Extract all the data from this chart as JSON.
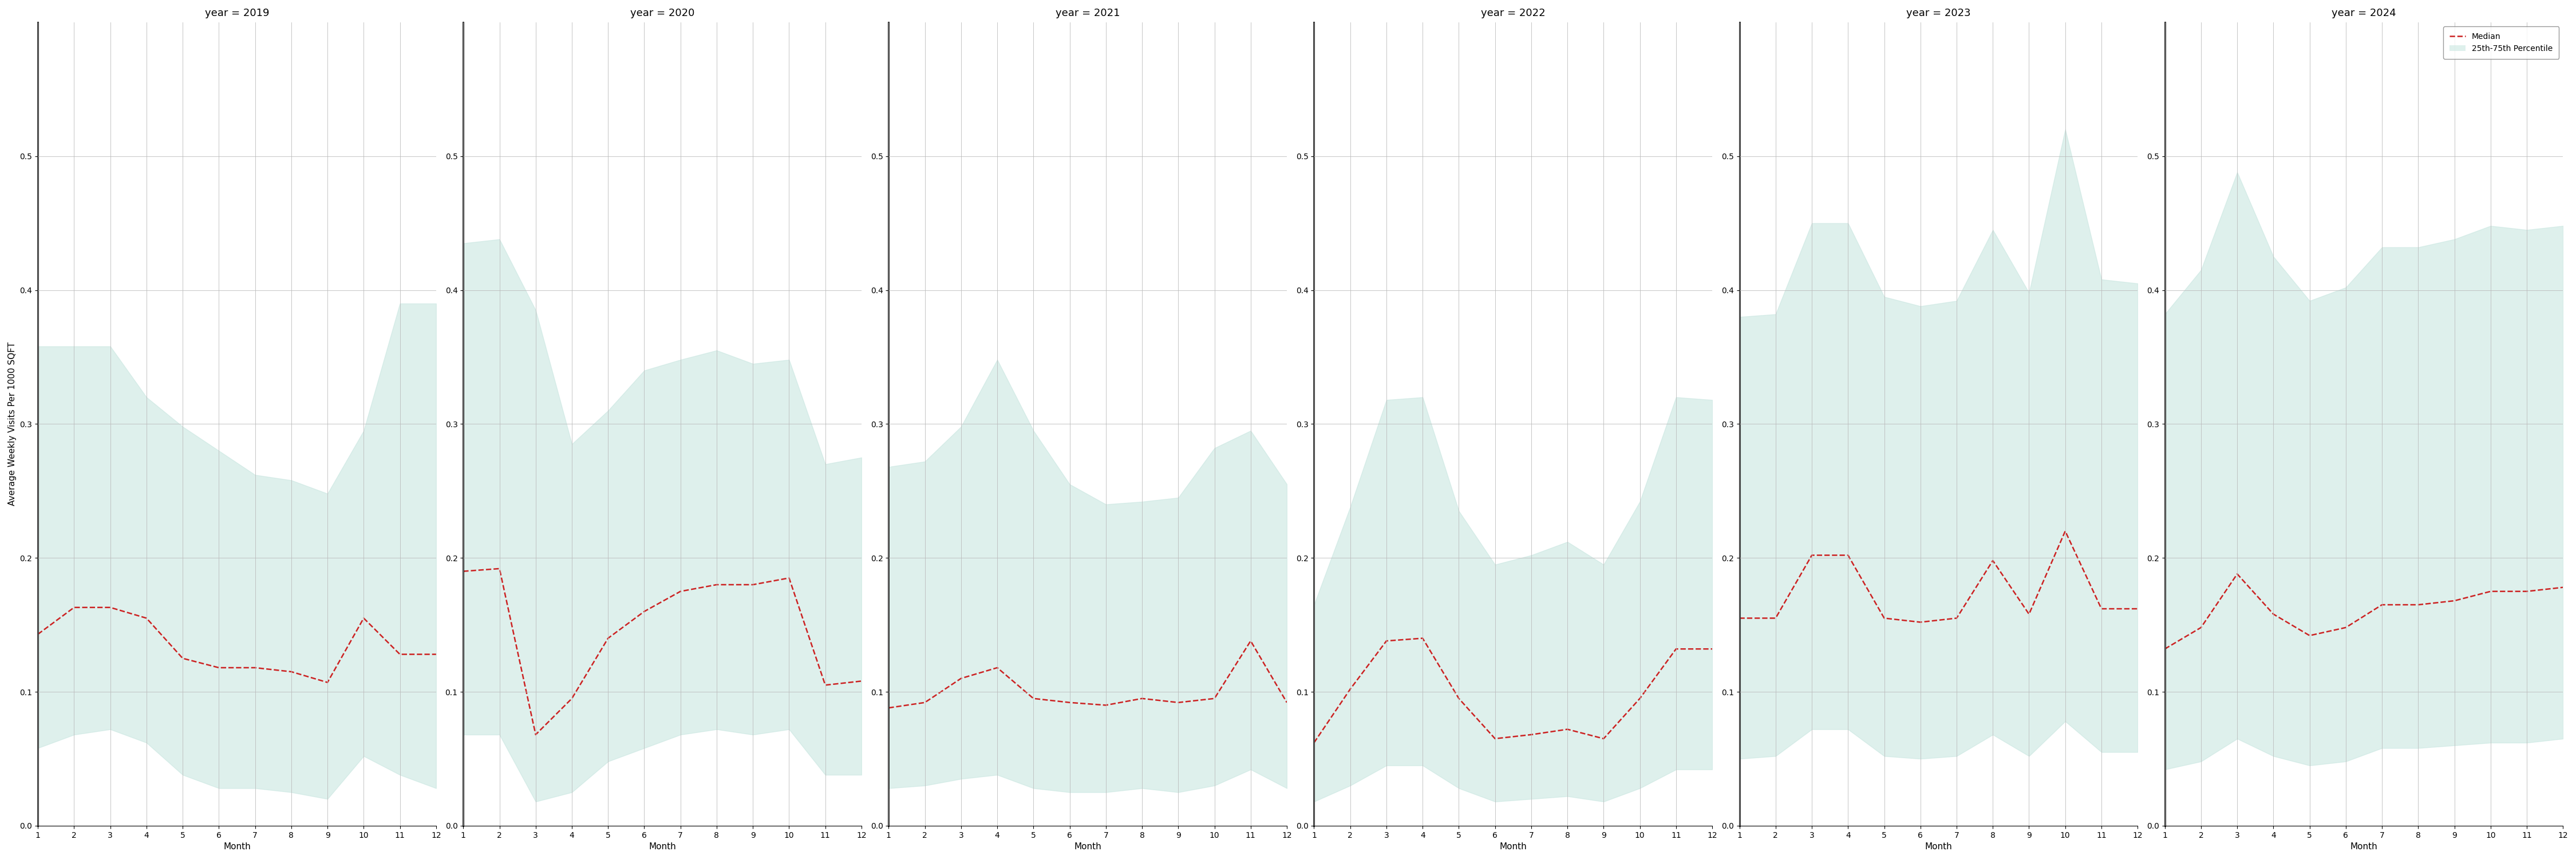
{
  "years": [
    2019,
    2020,
    2021,
    2022,
    2023,
    2024
  ],
  "months": [
    1,
    2,
    3,
    4,
    5,
    6,
    7,
    8,
    9,
    10,
    11,
    12
  ],
  "median": {
    "2019": [
      0.143,
      0.163,
      0.163,
      0.155,
      0.125,
      0.118,
      0.118,
      0.115,
      0.107,
      0.155,
      0.128,
      0.128
    ],
    "2020": [
      0.19,
      0.192,
      0.068,
      0.095,
      0.14,
      0.16,
      0.175,
      0.18,
      0.18,
      0.185,
      0.105,
      0.108
    ],
    "2021": [
      0.088,
      0.092,
      0.11,
      0.118,
      0.095,
      0.092,
      0.09,
      0.095,
      0.092,
      0.095,
      0.138,
      0.092
    ],
    "2022": [
      0.062,
      0.102,
      0.138,
      0.14,
      0.095,
      0.065,
      0.068,
      0.072,
      0.065,
      0.095,
      0.132,
      0.132
    ],
    "2023": [
      0.155,
      0.155,
      0.202,
      0.202,
      0.155,
      0.152,
      0.155,
      0.198,
      0.158,
      0.22,
      0.162,
      0.162
    ],
    "2024": [
      0.132,
      0.148,
      0.188,
      0.158,
      0.142,
      0.148,
      0.165,
      0.165,
      0.168,
      0.175,
      0.175,
      0.178
    ]
  },
  "p25": {
    "2019": [
      0.058,
      0.068,
      0.072,
      0.062,
      0.038,
      0.028,
      0.028,
      0.025,
      0.02,
      0.052,
      0.038,
      0.028
    ],
    "2020": [
      0.068,
      0.068,
      0.018,
      0.025,
      0.048,
      0.058,
      0.068,
      0.072,
      0.068,
      0.072,
      0.038,
      0.038
    ],
    "2021": [
      0.028,
      0.03,
      0.035,
      0.038,
      0.028,
      0.025,
      0.025,
      0.028,
      0.025,
      0.03,
      0.042,
      0.028
    ],
    "2022": [
      0.018,
      0.03,
      0.045,
      0.045,
      0.028,
      0.018,
      0.02,
      0.022,
      0.018,
      0.028,
      0.042,
      0.042
    ],
    "2023": [
      0.05,
      0.052,
      0.072,
      0.072,
      0.052,
      0.05,
      0.052,
      0.068,
      0.052,
      0.078,
      0.055,
      0.055
    ],
    "2024": [
      0.042,
      0.048,
      0.065,
      0.052,
      0.045,
      0.048,
      0.058,
      0.058,
      0.06,
      0.062,
      0.062,
      0.065
    ]
  },
  "p75": {
    "2019": [
      0.358,
      0.358,
      0.358,
      0.32,
      0.298,
      0.28,
      0.262,
      0.258,
      0.248,
      0.295,
      0.39,
      0.39
    ],
    "2020": [
      0.435,
      0.438,
      0.385,
      0.285,
      0.31,
      0.34,
      0.348,
      0.355,
      0.345,
      0.348,
      0.27,
      0.275
    ],
    "2021": [
      0.268,
      0.272,
      0.298,
      0.348,
      0.295,
      0.255,
      0.24,
      0.242,
      0.245,
      0.282,
      0.295,
      0.255
    ],
    "2022": [
      0.165,
      0.238,
      0.318,
      0.32,
      0.235,
      0.195,
      0.202,
      0.212,
      0.195,
      0.242,
      0.32,
      0.318
    ],
    "2023": [
      0.38,
      0.382,
      0.45,
      0.45,
      0.395,
      0.388,
      0.392,
      0.445,
      0.398,
      0.52,
      0.408,
      0.405
    ],
    "2024": [
      0.382,
      0.415,
      0.488,
      0.425,
      0.392,
      0.402,
      0.432,
      0.432,
      0.438,
      0.448,
      0.445,
      0.448
    ]
  },
  "ylim": [
    0.0,
    0.6
  ],
  "yticks": [
    0.0,
    0.1,
    0.2,
    0.3,
    0.4,
    0.5
  ],
  "ylabel": "Average Weekly Visits Per 1000 SQFT",
  "xlabel": "Month",
  "fill_color": "#c8e6e0",
  "fill_alpha": 0.6,
  "line_color": "#cc2222",
  "line_style": "--",
  "line_width": 1.8,
  "legend_median_label": "Median",
  "legend_fill_label": "25th-75th Percentile",
  "title_fontsize": 13,
  "axis_label_fontsize": 11,
  "tick_fontsize": 10,
  "background_color": "#ffffff",
  "grid_color": "#bbbbbb",
  "grid_linewidth": 0.6
}
